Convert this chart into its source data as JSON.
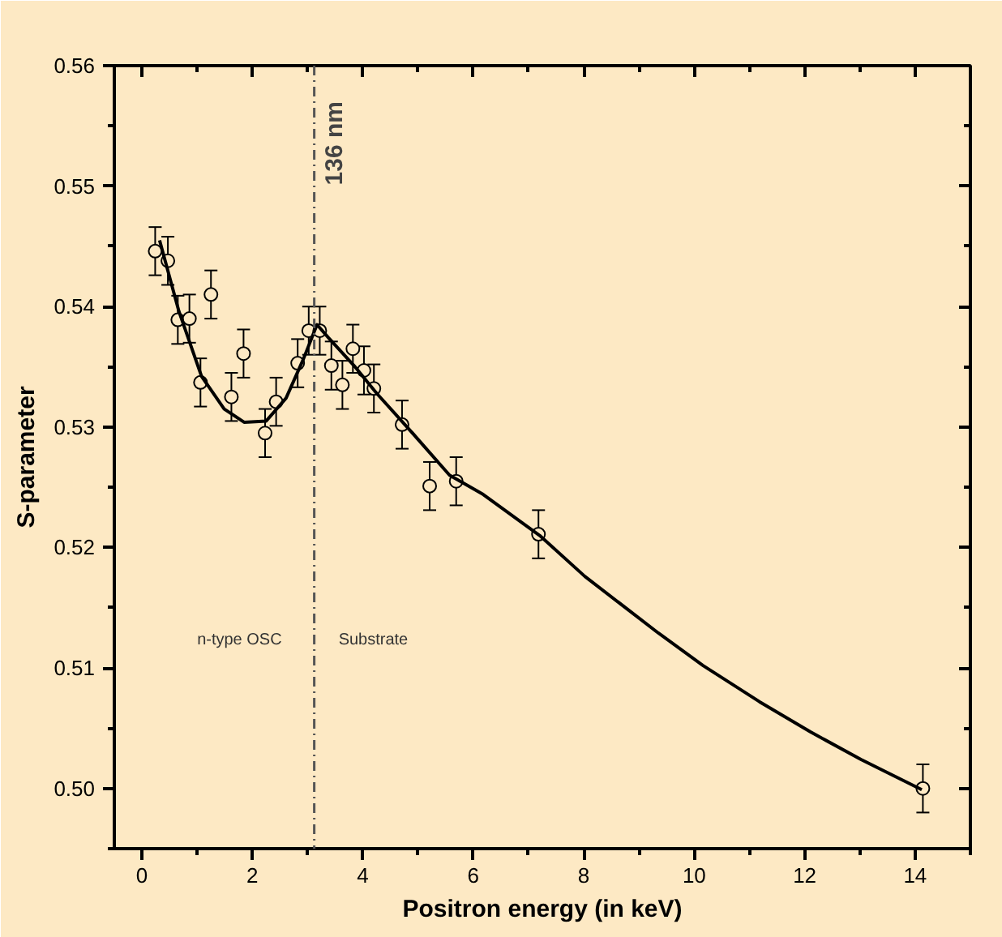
{
  "chart_data": {
    "type": "scatter",
    "xlabel": "Positron energy (in keV)",
    "ylabel": "S-parameter",
    "xlim": [
      -0.5,
      15
    ],
    "ylim": [
      0.495,
      0.56
    ],
    "xticks": [
      0,
      2,
      4,
      6,
      8,
      10,
      12,
      14
    ],
    "yticks": [
      {
        "value": 0.5,
        "label": "0.50"
      },
      0.51,
      0.52,
      0.53,
      0.54,
      0.55,
      0.56
    ],
    "grid": false,
    "marker": "circle",
    "series": [
      {
        "color": "#000000",
        "x": [
          0.24,
          0.47,
          0.65,
          0.86,
          1.06,
          1.25,
          1.62,
          1.84,
          2.23,
          2.43,
          2.82,
          3.02,
          3.22,
          3.43,
          3.63,
          3.82,
          4.02,
          4.2,
          4.71,
          5.21,
          5.69,
          7.18,
          14.14
        ],
        "values": [
          0.5446,
          0.5438,
          0.5389,
          0.539,
          0.5337,
          0.541,
          0.5325,
          0.5361,
          0.5295,
          0.5321,
          0.5353,
          0.538,
          0.538,
          0.5351,
          0.5335,
          0.5365,
          0.5347,
          0.5332,
          0.5302,
          0.5251,
          0.5255,
          0.5211,
          0.5
        ],
        "errors": [
          0.002,
          0.002,
          0.002,
          0.002,
          0.002,
          0.002,
          0.002,
          0.002,
          0.002,
          0.002,
          0.002,
          0.002,
          0.002,
          0.002,
          0.002,
          0.002,
          0.002,
          0.002,
          0.002,
          0.002,
          0.002,
          0.002,
          0.002
        ]
      },
      {
        "type": "line",
        "color": "#000000",
        "line_style": "solid",
        "marker": "none",
        "x": [
          0.32,
          0.67,
          1.08,
          1.49,
          1.85,
          2.25,
          2.61,
          2.92,
          3.17,
          3.38,
          3.84,
          4.25,
          4.86,
          5.57,
          6.18,
          7.2,
          8.02,
          9.35,
          10.16,
          11.18,
          12.1,
          13.02,
          14.12
        ],
        "values": [
          0.5455,
          0.5396,
          0.5342,
          0.5315,
          0.5304,
          0.5305,
          0.5324,
          0.5356,
          0.5385,
          0.5374,
          0.5351,
          0.5328,
          0.5297,
          0.526,
          0.5244,
          0.521,
          0.5176,
          0.5129,
          0.5102,
          0.5072,
          0.5047,
          0.5024,
          0.4999
        ]
      }
    ],
    "ref_lines": [
      {
        "axis": "x",
        "value": 3.12,
        "label": "136 nm",
        "line_style": "dashdot",
        "color": "#555555"
      }
    ],
    "annotations": [
      "n-type OSC",
      "Substrate"
    ]
  }
}
